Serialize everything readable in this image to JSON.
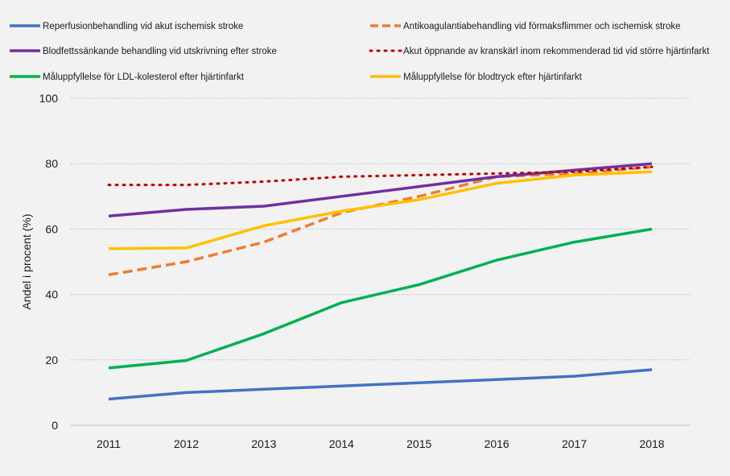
{
  "chart_data": {
    "type": "line",
    "title": "",
    "xlabel": "",
    "ylabel": "Andel i procent (%)",
    "ylim": [
      0,
      100
    ],
    "yticks": [
      0,
      20,
      40,
      60,
      80,
      100
    ],
    "grid": "horizontal dotted",
    "legend_position": "top",
    "categories": [
      "2011",
      "2012",
      "2013",
      "2014",
      "2015",
      "2016",
      "2017",
      "2018"
    ],
    "series": [
      {
        "name": "Reperfusionbehandling vid akut ischemisk stroke",
        "color": "#4472c4",
        "style": "solid",
        "values": [
          8,
          10,
          11,
          12,
          13,
          14,
          15,
          17
        ]
      },
      {
        "name": "Antikoagulantiabehandling vid förmaksflimmer och ischemisk stroke",
        "color": "#ed7d31",
        "style": "dashed",
        "values": [
          46,
          50,
          56,
          65,
          70,
          76,
          77,
          79
        ]
      },
      {
        "name": "Blodfettssänkande behandling vid utskrivning efter stroke",
        "color": "#7030a0",
        "style": "solid",
        "values": [
          64,
          66,
          67,
          70,
          73,
          76,
          78,
          80
        ]
      },
      {
        "name": "Akut öppnande av kranskärl inom rekommenderad tid vid större hjärtinfarkt",
        "color": "#c00000",
        "style": "dotted",
        "values": [
          73.5,
          73.5,
          74.5,
          76,
          76.5,
          77,
          77.5,
          79
        ]
      },
      {
        "name": "Måluppfyllelse för LDL-kolesterol efter hjärtinfarkt",
        "color": "#00b050",
        "style": "solid",
        "values": [
          17.5,
          19.8,
          28,
          37.5,
          43,
          50.5,
          56,
          60
        ]
      },
      {
        "name": "Måluppfyllelse för blodtryck efter hjärtinfarkt",
        "color": "#ffc000",
        "style": "solid",
        "values": [
          54,
          54.2,
          61,
          65.5,
          69,
          74,
          76.5,
          77.5
        ]
      }
    ]
  }
}
